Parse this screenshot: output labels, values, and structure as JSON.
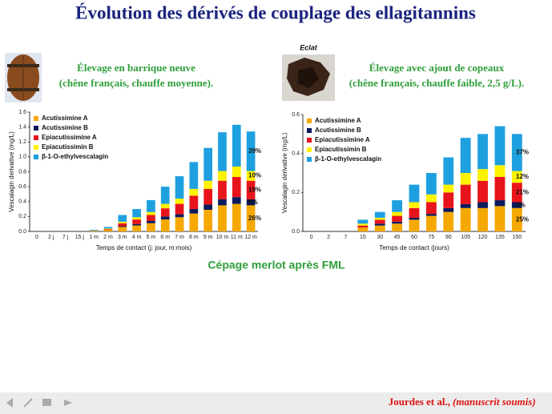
{
  "slide": {
    "title": "Évolution des dérivés de couplage des ellagitannins",
    "footer": "Cépage merlot après FML",
    "citation": "Jourdes et al.,",
    "citation_note": "(manuscrit soumis)"
  },
  "chart_data": [
    {
      "type": "bar",
      "stacked": true,
      "caption": [
        "Élevage en barrique neuve",
        "(chêne français, chauffe moyenne)."
      ],
      "xlabel": "Temps de contact (j: jour, m:mois)",
      "ylabel": "Vescalagin derivative (mg/L)",
      "categories": [
        "0",
        "2 j",
        "7 j",
        "15 j",
        "1 m",
        "2 m",
        "3 m",
        "4 m",
        "5 m",
        "6 m",
        "7 m",
        "8 m",
        "9 m",
        "10 m",
        "11 m",
        "12 m"
      ],
      "series": [
        {
          "name": "Acutissimine A",
          "color": "#f5a800",
          "values": [
            0,
            0,
            0,
            0,
            0.01,
            0.02,
            0.06,
            0.08,
            0.11,
            0.16,
            0.19,
            0.24,
            0.29,
            0.35,
            0.37,
            0.35
          ]
        },
        {
          "name": "Acutissimine B",
          "color": "#0a1a5c",
          "values": [
            0,
            0,
            0,
            0,
            0,
            0,
            0.01,
            0.02,
            0.03,
            0.04,
            0.04,
            0.06,
            0.07,
            0.08,
            0.09,
            0.08
          ]
        },
        {
          "name": "Epiacutissimine A",
          "color": "#e8141c",
          "values": [
            0,
            0,
            0,
            0,
            0,
            0.01,
            0.04,
            0.06,
            0.08,
            0.11,
            0.14,
            0.18,
            0.21,
            0.25,
            0.27,
            0.25
          ]
        },
        {
          "name": "Epiacutissimin B",
          "color": "#fff200",
          "values": [
            0,
            0,
            0,
            0,
            0,
            0.01,
            0.02,
            0.03,
            0.04,
            0.06,
            0.07,
            0.09,
            0.11,
            0.13,
            0.14,
            0.13
          ]
        },
        {
          "name": "β-1-O-ethylvescalagin",
          "color": "#1ea0e0",
          "values": [
            0,
            0,
            0,
            0,
            0.01,
            0.02,
            0.09,
            0.11,
            0.16,
            0.23,
            0.3,
            0.36,
            0.44,
            0.52,
            0.56,
            0.53
          ]
        }
      ],
      "ylim": [
        0,
        1.6
      ],
      "yticks": [
        {
          "value": 0,
          "label": "0.0"
        },
        {
          "value": 0.2,
          "label": "0.2"
        },
        {
          "value": 0.4,
          "label": "0.4"
        },
        {
          "value": 0.6,
          "label": "0.6"
        },
        {
          "value": 0.8,
          "label": "0.8"
        },
        {
          "value": 1.0,
          "label": "1.0"
        },
        {
          "value": 1.2,
          "label": "1.2"
        },
        {
          "value": 1.4,
          "label": "1.4"
        },
        {
          "value": 1.6,
          "label": "1.6"
        }
      ],
      "legend": "upper left",
      "annotations": [
        "26%",
        "6%",
        "19%",
        "10%",
        "39%"
      ]
    },
    {
      "type": "bar",
      "stacked": true,
      "image_label": "Eclat",
      "caption": [
        "Élevage avec ajout de copeaux",
        "(chêne français, chauffe faible, 2,5 g/L)."
      ],
      "xlabel": "Temps de contact (jours)",
      "ylabel": "Vescalagin derivative (mg/L)",
      "categories": [
        "0",
        "2",
        "7",
        "15",
        "30",
        "45",
        "60",
        "75",
        "90",
        "105",
        "120",
        "135",
        "150"
      ],
      "series": [
        {
          "name": "Acutissimine A",
          "color": "#f5a800",
          "values": [
            0,
            0,
            0,
            0.02,
            0.03,
            0.04,
            0.06,
            0.08,
            0.1,
            0.12,
            0.12,
            0.13,
            0.12
          ]
        },
        {
          "name": "Acutissimine B",
          "color": "#0a1a5c",
          "values": [
            0,
            0,
            0,
            0,
            0.01,
            0.01,
            0.01,
            0.01,
            0.02,
            0.02,
            0.03,
            0.03,
            0.03
          ]
        },
        {
          "name": "Epiacutissimine A",
          "color": "#e8141c",
          "values": [
            0,
            0,
            0,
            0.01,
            0.02,
            0.03,
            0.05,
            0.06,
            0.08,
            0.1,
            0.11,
            0.12,
            0.1
          ]
        },
        {
          "name": "Epiacutissimin B",
          "color": "#fff200",
          "values": [
            0,
            0,
            0,
            0.01,
            0.01,
            0.02,
            0.03,
            0.04,
            0.04,
            0.06,
            0.06,
            0.06,
            0.06
          ]
        },
        {
          "name": "β-1-O-ethylvescalagin",
          "color": "#1ea0e0",
          "values": [
            0,
            0,
            0,
            0.02,
            0.03,
            0.06,
            0.09,
            0.11,
            0.14,
            0.18,
            0.18,
            0.2,
            0.19
          ]
        }
      ],
      "ylim": [
        0,
        0.6
      ],
      "yticks": [
        {
          "value": 0,
          "label": "0.0"
        },
        {
          "value": 0.2,
          "label": "0.2"
        },
        {
          "value": 0.4,
          "label": "0.4"
        },
        {
          "value": 0.6,
          "label": "0.6"
        }
      ],
      "legend": "upper left",
      "annotations": [
        "25%",
        "5%",
        "21%",
        "12%",
        "37%"
      ]
    }
  ]
}
